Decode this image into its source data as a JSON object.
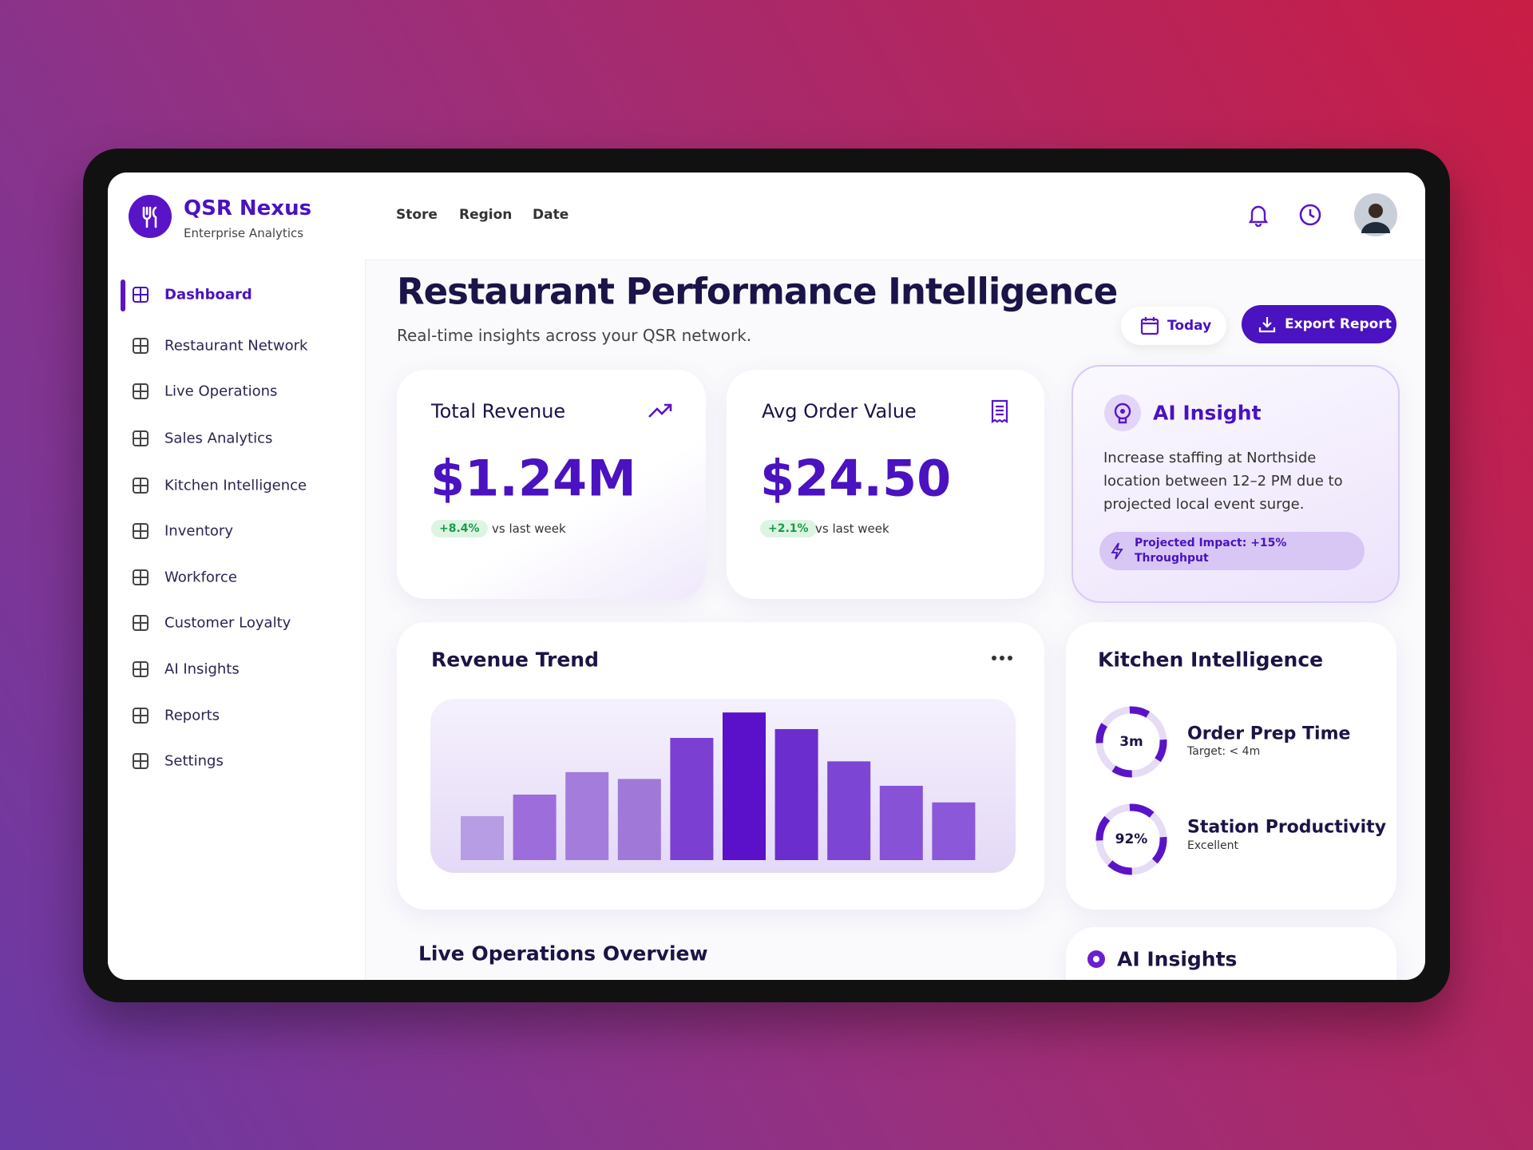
{
  "brand": {
    "name": "QSR Nexus",
    "tagline": "Enterprise Analytics"
  },
  "nav": {
    "items": [
      "Dashboard",
      "Restaurant Network",
      "Live Operations",
      "Sales Analytics",
      "Kitchen Intelligence",
      "Inventory",
      "Workforce",
      "Customer Loyalty",
      "AI Insights",
      "Reports",
      "Settings"
    ]
  },
  "filters": [
    "Store",
    "Region",
    "Date"
  ],
  "header": {
    "title": "Restaurant Performance Intelligence",
    "subtitle": "Real-time insights across your QSR network."
  },
  "actions": {
    "today": "Today",
    "export": "Export Report"
  },
  "kpis": [
    {
      "title": "Total Revenue",
      "value": "$1.24M",
      "change": "+8.4%",
      "comparison": "vs last week"
    },
    {
      "title": "Avg Order Value",
      "value": "$24.50",
      "change": "+2.1%",
      "comparison": "vs last week"
    }
  ],
  "ai_insight": {
    "title": "AI Insight",
    "body": "Increase staffing at Northside location between 12–2 PM due to projected local event surge.",
    "impact": "Projected Impact: +15% Throughput"
  },
  "chart_data": {
    "type": "bar",
    "title": "Revenue Trend",
    "values": [
      45,
      67,
      90,
      83,
      125,
      151,
      134,
      101,
      76,
      59
    ],
    "ylim": [
      0,
      165
    ],
    "colors": [
      "#b79de3",
      "#9d6ddb",
      "#a47cdc",
      "#9f78d8",
      "#7b3fd1",
      "#5b10c9",
      "#6c2dcf",
      "#7d45d3",
      "#8752d6",
      "#8b58d9"
    ]
  },
  "kitchen": {
    "title": "Kitchen Intelligence",
    "metrics": [
      {
        "value": "3m",
        "label": "Order Prep Time",
        "detail": "Target: < 4m"
      },
      {
        "value": "92%",
        "label": "Station Productivity",
        "detail": "Excellent"
      }
    ]
  },
  "sections": {
    "live_operations": "Live Operations Overview",
    "ai_insights": "AI Insights"
  }
}
